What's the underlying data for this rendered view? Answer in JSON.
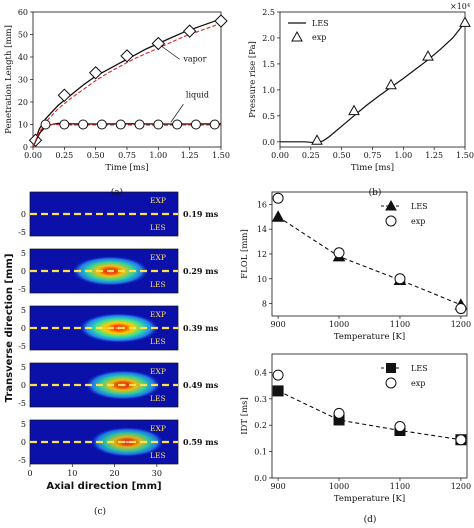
{
  "panels": {
    "a": "(a)",
    "b": "(b)",
    "c": "(c)",
    "d": "(d)"
  },
  "chart_data": [
    {
      "panel": "a",
      "type": "line",
      "xlabel": "Time [ms]",
      "ylabel": "Penetration Length [mm]",
      "xlim": [
        0,
        1.5
      ],
      "ylim": [
        0,
        60
      ],
      "xticks": [
        "0.00",
        "0.25",
        "0.50",
        "0.75",
        "1.00",
        "1.25",
        "1.50"
      ],
      "yticks": [
        "0",
        "10",
        "20",
        "30",
        "40",
        "50",
        "60"
      ],
      "annotations": [
        "vapor",
        "liquid"
      ],
      "series": [
        {
          "role": "vapor-les",
          "color": "#111111",
          "dash": "solid",
          "x": [
            0,
            0.05,
            0.1,
            0.2,
            0.3,
            0.4,
            0.5,
            0.6,
            0.7,
            0.8,
            0.9,
            1.0,
            1.1,
            1.2,
            1.3,
            1.4,
            1.5
          ],
          "y": [
            0,
            8,
            12.5,
            18.5,
            23,
            27.5,
            31.5,
            34.5,
            37.5,
            40.5,
            43.5,
            46,
            48.5,
            51,
            53,
            55,
            57
          ]
        },
        {
          "role": "vapor-les-alt",
          "color": "#d62728",
          "dash": "dashed",
          "x": [
            0,
            0.1,
            0.2,
            0.3,
            0.4,
            0.5,
            0.6,
            0.7,
            0.8,
            0.9,
            1.0,
            1.1,
            1.2,
            1.3,
            1.4,
            1.5
          ],
          "y": [
            0,
            11,
            17,
            21.5,
            25.5,
            29.5,
            33,
            36,
            39,
            41.5,
            44,
            46.5,
            49,
            51,
            53,
            55
          ]
        },
        {
          "role": "vapor-exp",
          "marker": "diamond",
          "x": [
            0.02,
            0.25,
            0.5,
            0.75,
            1.0,
            1.25,
            1.5
          ],
          "y": [
            3,
            23,
            33,
            40.5,
            46,
            51.5,
            56
          ]
        },
        {
          "role": "liquid-les",
          "color": "#111111",
          "dash": "solid",
          "x": [
            0,
            0.05,
            0.1,
            0.15,
            0.2,
            0.3,
            0.5,
            0.75,
            1.0,
            1.25,
            1.5
          ],
          "y": [
            0,
            6,
            9,
            10,
            10.5,
            10.3,
            10.2,
            10.3,
            10.2,
            10.2,
            10.3
          ]
        },
        {
          "role": "liquid-les-alt",
          "color": "#d62728",
          "dash": "dashed",
          "x": [
            0,
            0.05,
            0.1,
            0.15,
            0.2,
            0.3,
            0.5,
            0.75,
            1.0,
            1.25,
            1.5
          ],
          "y": [
            0,
            7,
            9.5,
            10,
            10,
            9.8,
            9.8,
            9.8,
            9.7,
            9.8,
            9.8
          ]
        },
        {
          "role": "liquid-exp",
          "marker": "circle",
          "x": [
            0.1,
            0.25,
            0.4,
            0.55,
            0.7,
            0.85,
            1.0,
            1.15,
            1.3,
            1.45
          ],
          "y": [
            10,
            10,
            10,
            10,
            10,
            10,
            10,
            10,
            10,
            10
          ]
        }
      ]
    },
    {
      "panel": "b",
      "type": "line",
      "xlabel": "Time [ms]",
      "ylabel": "Pressure rise [Pa]",
      "exponent": "×10⁴",
      "xlim": [
        0,
        1.5
      ],
      "ylim": [
        -0.1,
        2.5
      ],
      "xticks": [
        "0.00",
        "0.25",
        "0.50",
        "0.75",
        "1.00",
        "1.25",
        "1.50"
      ],
      "yticks": [
        "0.0",
        "0.5",
        "1.0",
        "1.5",
        "2.0",
        "2.5"
      ],
      "legend": [
        "LES",
        "exp"
      ],
      "series": [
        {
          "name": "LES",
          "x": [
            0,
            0.1,
            0.2,
            0.3,
            0.35,
            0.4,
            0.5,
            0.6,
            0.7,
            0.8,
            0.9,
            1.0,
            1.1,
            1.2,
            1.3,
            1.4,
            1.5
          ],
          "y": [
            0,
            0,
            0,
            -0.02,
            0.02,
            0.1,
            0.3,
            0.5,
            0.7,
            0.88,
            1.05,
            1.22,
            1.4,
            1.58,
            1.78,
            2.0,
            2.3
          ]
        },
        {
          "name": "exp",
          "marker": "triangle",
          "x": [
            0.3,
            0.6,
            0.9,
            1.2,
            1.5
          ],
          "y": [
            0.03,
            0.6,
            1.1,
            1.65,
            2.3
          ]
        }
      ]
    },
    {
      "panel": "c",
      "type": "heatmap",
      "xlabel": "Axial direction [mm]",
      "ylabel": "Transverse direction [mm]",
      "xticks": [
        "0",
        "10",
        "20",
        "30"
      ],
      "yticks": [
        "5",
        "0",
        "-5"
      ],
      "frames": [
        {
          "time": "0.19 ms",
          "exp": "EXP",
          "les": "LES",
          "intensity": 0.0,
          "center": 0
        },
        {
          "time": "0.29 ms",
          "exp": "EXP",
          "les": "LES",
          "intensity": 0.85,
          "center": 19
        },
        {
          "time": "0.39 ms",
          "exp": "EXP",
          "les": "LES",
          "intensity": 1.0,
          "center": 21
        },
        {
          "time": "0.49 ms",
          "exp": "EXP",
          "les": "LES",
          "intensity": 0.8,
          "center": 22
        },
        {
          "time": "0.59 ms",
          "exp": "EXP",
          "les": "LES",
          "intensity": 0.7,
          "center": 23
        }
      ]
    },
    {
      "panel": "d-top",
      "type": "line",
      "xlabel": "Temperature [K]",
      "ylabel": "FLOL [mm]",
      "xlim": [
        890,
        1210
      ],
      "ylim": [
        7,
        17
      ],
      "xticks": [
        "900",
        "1000",
        "1100",
        "1200"
      ],
      "yticks": [
        "8",
        "10",
        "12",
        "14",
        "16"
      ],
      "legend": [
        "LES",
        "exp"
      ],
      "series": [
        {
          "name": "LES",
          "marker": "triangle-filled",
          "x": [
            900,
            1000,
            1100,
            1200
          ],
          "y": [
            15.0,
            11.8,
            9.9,
            7.9
          ]
        },
        {
          "name": "exp",
          "marker": "circle-open",
          "x": [
            900,
            1000,
            1100,
            1200
          ],
          "y": [
            16.5,
            12.1,
            10.0,
            7.6
          ]
        }
      ]
    },
    {
      "panel": "d-bottom",
      "type": "line",
      "xlabel": "Temperature [K]",
      "ylabel": "IDT [ms]",
      "xlim": [
        890,
        1210
      ],
      "ylim": [
        0.0,
        0.47
      ],
      "xticks": [
        "900",
        "1000",
        "1100",
        "1200"
      ],
      "yticks": [
        "0.0",
        "0.1",
        "0.2",
        "0.3",
        "0.4"
      ],
      "legend": [
        "LES",
        "exp"
      ],
      "series": [
        {
          "name": "LES",
          "marker": "square-filled",
          "x": [
            900,
            1000,
            1100,
            1200
          ],
          "y": [
            0.33,
            0.22,
            0.18,
            0.145
          ]
        },
        {
          "name": "exp",
          "marker": "circle-open",
          "x": [
            900,
            1000,
            1100,
            1200
          ],
          "y": [
            0.39,
            0.245,
            0.195,
            0.145
          ]
        }
      ]
    }
  ]
}
